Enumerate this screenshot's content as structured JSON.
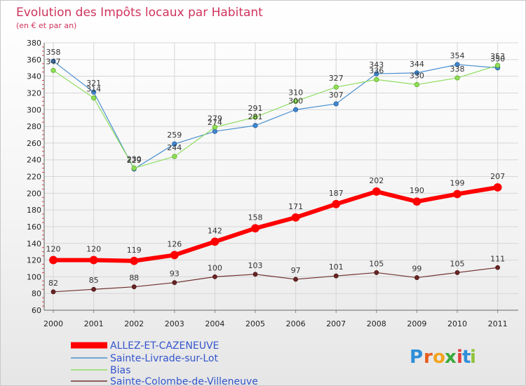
{
  "chart_data": {
    "type": "line",
    "title": "Evolution des Impôts locaux par Habitant",
    "subtitle": "(en € et par an)",
    "xlabel": "",
    "ylabel": "",
    "categories": [
      "2000",
      "2001",
      "2002",
      "2003",
      "2004",
      "2005",
      "2006",
      "2007",
      "2008",
      "2009",
      "2010",
      "2011"
    ],
    "ylim": [
      60,
      380
    ],
    "yticks": [
      60,
      80,
      100,
      120,
      140,
      160,
      180,
      200,
      220,
      240,
      260,
      280,
      300,
      320,
      340,
      360,
      380
    ],
    "grid": true,
    "legend_position": "bottom-left",
    "series": [
      {
        "name": "ALLEZ-ET-CAZENEUVE",
        "color": "#ff0000",
        "values": [
          120,
          120,
          119,
          126,
          142,
          158,
          171,
          187,
          202,
          190,
          199,
          207
        ]
      },
      {
        "name": "Sainte-Livrade-sur-Lot",
        "color": "#4a8fd0",
        "values": [
          358,
          321,
          229,
          259,
          274,
          281,
          300,
          307,
          343,
          344,
          354,
          350
        ]
      },
      {
        "name": "Bias",
        "color": "#90dd60",
        "values": [
          347,
          314,
          230,
          244,
          279,
          291,
          310,
          327,
          336,
          330,
          338,
          353
        ]
      },
      {
        "name": "Sainte-Colombe-de-Villeneuve",
        "color": "#703030",
        "values": [
          82,
          85,
          88,
          93,
          100,
          103,
          97,
          101,
          105,
          99,
          105,
          111
        ]
      }
    ]
  },
  "logo": {
    "letters": [
      "P",
      "r",
      "o",
      "x",
      "i",
      "t",
      "i"
    ],
    "colors": [
      "#2f8fd8",
      "#e65c1e",
      "#f2a41e",
      "#3aa93a",
      "#e23c3c",
      "#2f8fd8",
      "#8fc43a"
    ]
  }
}
